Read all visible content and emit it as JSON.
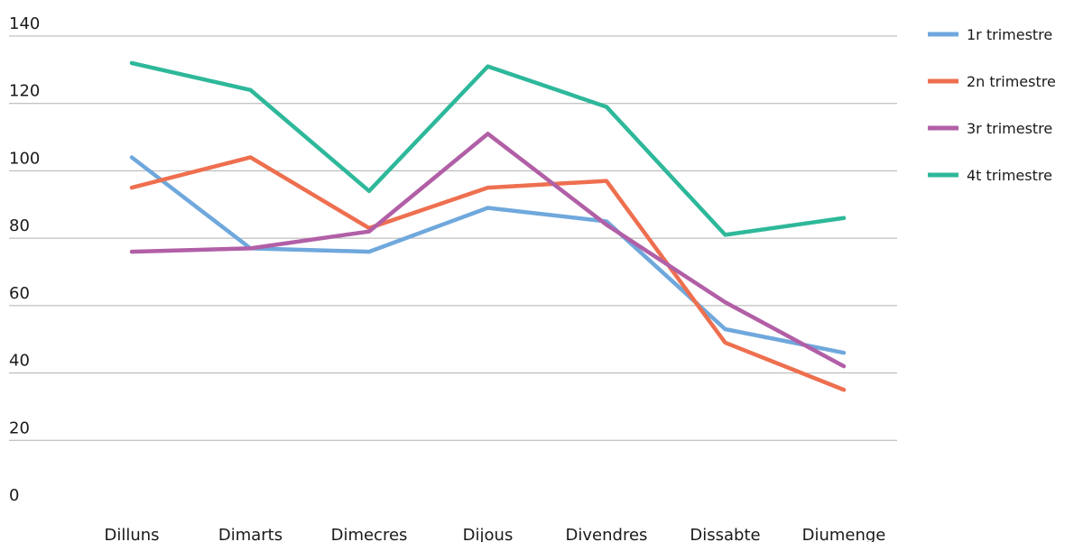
{
  "chart_data": {
    "type": "line",
    "title": "",
    "xlabel": "",
    "ylabel": "",
    "categories": [
      "Dilluns",
      "Dimarts",
      "Dimecres",
      "Dijous",
      "Divendres",
      "Dissabte",
      "Diumenge"
    ],
    "ylim": [
      0,
      140
    ],
    "yticks": [
      "0",
      "20",
      "40",
      "60",
      "80",
      "100",
      "120",
      "140"
    ],
    "grid": true,
    "legend_position": "right",
    "series": [
      {
        "name": "1r trimestre",
        "color": "#6fa8dc",
        "values": [
          104,
          77,
          76,
          89,
          85,
          53,
          46
        ]
      },
      {
        "name": "2n trimestre",
        "color": "#ee6f4f",
        "values": [
          95,
          104,
          83,
          95,
          97,
          49,
          35
        ]
      },
      {
        "name": "3r trimestre",
        "color": "#b15fa6",
        "values": [
          76,
          77,
          82,
          111,
          84,
          61,
          42
        ]
      },
      {
        "name": "4t trimestre",
        "color": "#2eb89a",
        "values": [
          132,
          124,
          94,
          131,
          119,
          81,
          86
        ]
      }
    ]
  }
}
